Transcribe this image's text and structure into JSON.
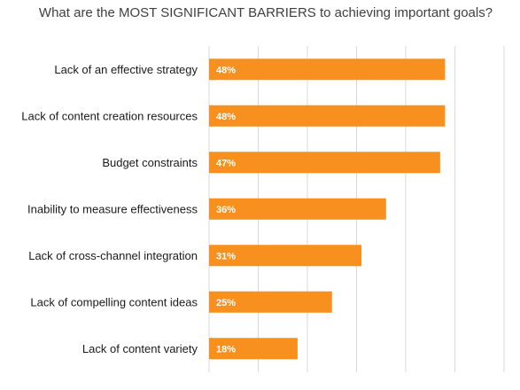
{
  "chart_data": {
    "type": "bar",
    "orientation": "horizontal",
    "title": "What are the MOST SIGNIFICANT BARRIERS to achieving important goals?",
    "categories": [
      "Lack of an effective strategy",
      "Lack of content creation resources",
      "Budget constraints",
      "Inability to measure effectiveness",
      "Lack of cross-channel integration",
      "Lack of compelling content ideas",
      "Lack of content variety"
    ],
    "values": [
      48,
      48,
      47,
      36,
      31,
      25,
      18
    ],
    "value_labels": [
      "48%",
      "48%",
      "47%",
      "36%",
      "31%",
      "25%",
      "18%"
    ],
    "unit": "%",
    "xlim": [
      0,
      60
    ],
    "grid": "vertical",
    "bar_color": "#F7901E",
    "label_color": "#FFFFFF"
  }
}
